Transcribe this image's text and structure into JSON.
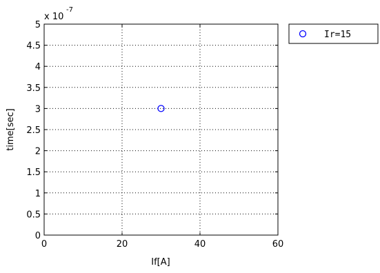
{
  "chart_data": {
    "type": "scatter",
    "xlabel": "If[A]",
    "ylabel": "time[sec]",
    "xlim": [
      0,
      60
    ],
    "ylim": [
      0,
      5e-07
    ],
    "x_ticks": [
      0,
      20,
      40,
      60
    ],
    "x_tick_labels": [
      "0",
      "20",
      "40",
      "60"
    ],
    "y_ticks": [
      0,
      5e-08,
      1e-07,
      1.5e-07,
      2e-07,
      2.5e-07,
      3e-07,
      3.5e-07,
      4e-07,
      4.5e-07,
      5e-07
    ],
    "y_tick_labels": [
      "0",
      "0.5",
      "1",
      "1.5",
      "2",
      "2.5",
      "3",
      "3.5",
      "4",
      "4.5",
      "5"
    ],
    "y_exponent_label": "x 10",
    "y_exponent_power": "-7",
    "grid": true,
    "legend_position": "outside-top-right",
    "series": [
      {
        "name": "Ir=15",
        "marker": "circle",
        "color": "#0000ff",
        "x": [
          30
        ],
        "y": [
          3e-07
        ]
      }
    ]
  }
}
